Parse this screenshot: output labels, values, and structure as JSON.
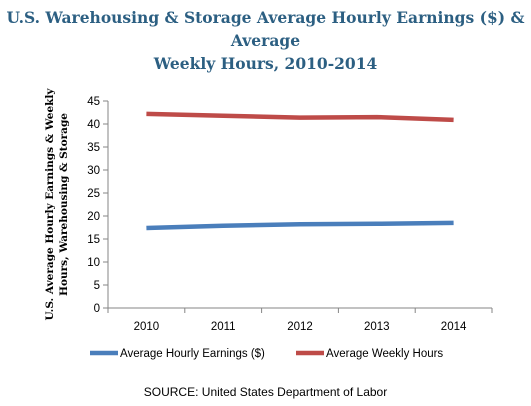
{
  "title_lines": [
    "U.S. Warehousing & Storage Average Hourly Earnings ($) & Average",
    "Weekly Hours, 2010-2014"
  ],
  "source": "SOURCE: United States Department of Labor",
  "chart_data": {
    "type": "line",
    "title": "U.S. Warehousing & Storage Average Hourly Earnings ($) & Average Weekly Hours, 2010-2014",
    "ylabel_lines": [
      "U.S. Average Hourly Earnings  & Weekly",
      "Hours, Warehousing  & Storage"
    ],
    "xlabel": "",
    "categories": [
      "2010",
      "2011",
      "2012",
      "2013",
      "2014"
    ],
    "ylim": [
      0,
      45
    ],
    "yticks": [
      0,
      5,
      10,
      15,
      20,
      25,
      30,
      35,
      40,
      45
    ],
    "grid": false,
    "legend_position": "bottom",
    "series": [
      {
        "name": "Average Hourly Earnings ($)",
        "color": "#4a7ebb",
        "values": [
          17.4,
          17.9,
          18.2,
          18.3,
          18.5
        ]
      },
      {
        "name": "Average Weekly Hours",
        "color": "#be4b48",
        "values": [
          42.2,
          41.8,
          41.4,
          41.5,
          40.9
        ]
      }
    ]
  }
}
